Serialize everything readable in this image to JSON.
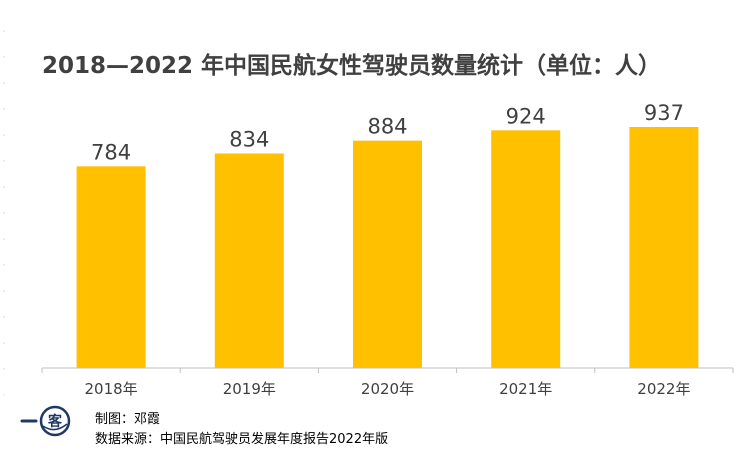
{
  "chart_data": {
    "type": "bar",
    "title": "2018—2022 年中国民航女性驾驶员数量统计（单位：人）",
    "categories": [
      "2018年",
      "2019年",
      "2020年",
      "2021年",
      "2022年"
    ],
    "values": [
      784,
      834,
      884,
      924,
      937
    ],
    "xlabel": "",
    "ylabel": "",
    "ylim": [
      0,
      1000
    ],
    "grid": false,
    "legend": "none",
    "bar_color": "#FFC000",
    "axis_color": "#BFBFBF",
    "label_color": "#404040"
  },
  "footer": {
    "author": "制图：邓霞",
    "source": "数据来源：中国民航驾驶员发展年度报告2022年版",
    "logo_text": "客"
  }
}
